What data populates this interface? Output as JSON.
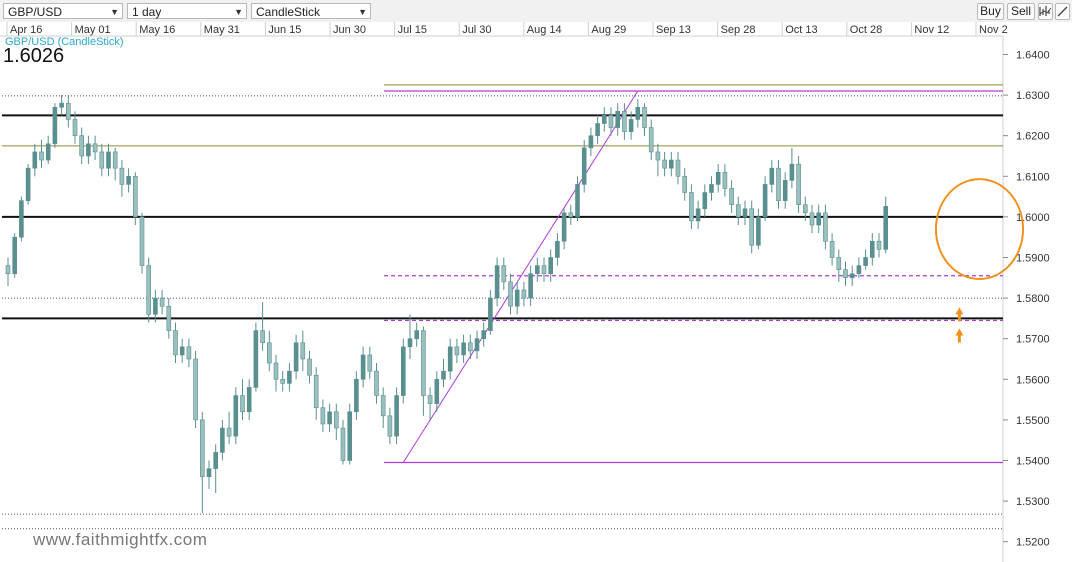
{
  "toolbar": {
    "symbol": "GBP/USD",
    "period": "1 day",
    "chart_type": "CandleStick",
    "buy_label": "Buy",
    "sell_label": "Sell",
    "indicator_icon": "indicator-icon",
    "draw_icon": "draw-icon"
  },
  "header": {
    "series_label": "GBP/USD (CandleStick)",
    "last_price": "1.6026"
  },
  "watermark": "www.faithmightfx.com",
  "colors": {
    "candle": "#5a8f8f",
    "candle_light": "#9abfbf",
    "trendline": "#b13ad9",
    "olive": "#8a8a3a",
    "circle": "#f0921e",
    "arrow": "#f0921e"
  },
  "chart_data": {
    "type": "candlestick",
    "title": "",
    "xlabel": "",
    "ylabel": "",
    "ylim": [
      1.515,
      1.648
    ],
    "y_ticks": [
      "1.6400",
      "1.6300",
      "1.6200",
      "1.6100",
      "1.6000",
      "1.5900",
      "1.5800",
      "1.5700",
      "1.5600",
      "1.5500",
      "1.5400",
      "1.5300",
      "1.5200"
    ],
    "x_ticks": [
      "Apr 16",
      "May 01",
      "May 16",
      "May 31",
      "Jun 15",
      "Jun 30",
      "Jul 15",
      "Jul 30",
      "Aug 14",
      "Aug 29",
      "Sep 13",
      "Sep 28",
      "Oct 13",
      "Oct 28",
      "Nov 12",
      "Nov 2"
    ],
    "support_resistance": [
      1.625,
      1.6,
      1.575
    ],
    "dotted_levels": [
      1.6298,
      1.58,
      1.5268,
      1.5232
    ],
    "olive_levels": [
      1.6325,
      1.6175
    ],
    "dashed_levels": [
      1.5855,
      1.5745
    ],
    "magenta_levels": [
      1.631,
      1.5395
    ],
    "trendline": [
      [
        59,
        1.5395
      ],
      [
        94,
        1.631
      ]
    ],
    "circle": {
      "x_index": 145,
      "center": 1.597,
      "radius_x": 6.5,
      "radius_price": 0.0123
    },
    "arrows": [
      {
        "x_index": 142,
        "price": 1.576
      },
      {
        "x_index": 142,
        "price": 1.5708
      }
    ],
    "candles": [
      [
        1.588,
        1.586,
        1.583,
        1.59
      ],
      [
        1.586,
        1.595,
        1.585,
        1.596
      ],
      [
        1.595,
        1.604,
        1.594,
        1.605
      ],
      [
        1.604,
        1.612,
        1.603,
        1.613
      ],
      [
        1.612,
        1.616,
        1.61,
        1.618
      ],
      [
        1.616,
        1.614,
        1.612,
        1.619
      ],
      [
        1.614,
        1.618,
        1.613,
        1.62
      ],
      [
        1.618,
        1.627,
        1.617,
        1.628
      ],
      [
        1.627,
        1.628,
        1.625,
        1.63
      ],
      [
        1.628,
        1.624,
        1.622,
        1.63
      ],
      [
        1.624,
        1.62,
        1.618,
        1.626
      ],
      [
        1.62,
        1.615,
        1.613,
        1.622
      ],
      [
        1.615,
        1.618,
        1.613,
        1.62
      ],
      [
        1.618,
        1.616,
        1.614,
        1.62
      ],
      [
        1.616,
        1.612,
        1.61,
        1.618
      ],
      [
        1.612,
        1.616,
        1.61,
        1.618
      ],
      [
        1.616,
        1.612,
        1.609,
        1.617
      ],
      [
        1.612,
        1.608,
        1.605,
        1.614
      ],
      [
        1.608,
        1.61,
        1.606,
        1.612
      ],
      [
        1.61,
        1.6,
        1.598,
        1.611
      ],
      [
        1.6,
        1.588,
        1.586,
        1.601
      ],
      [
        1.588,
        1.576,
        1.574,
        1.59
      ],
      [
        1.576,
        1.58,
        1.574,
        1.582
      ],
      [
        1.58,
        1.578,
        1.576,
        1.582
      ],
      [
        1.578,
        1.572,
        1.57,
        1.58
      ],
      [
        1.572,
        1.566,
        1.564,
        1.574
      ],
      [
        1.566,
        1.568,
        1.564,
        1.57
      ],
      [
        1.568,
        1.565,
        1.563,
        1.57
      ],
      [
        1.565,
        1.55,
        1.548,
        1.567
      ],
      [
        1.55,
        1.536,
        1.527,
        1.552
      ],
      [
        1.536,
        1.538,
        1.533,
        1.54
      ],
      [
        1.538,
        1.542,
        1.532,
        1.544
      ],
      [
        1.542,
        1.548,
        1.54,
        1.55
      ],
      [
        1.548,
        1.546,
        1.544,
        1.552
      ],
      [
        1.546,
        1.556,
        1.544,
        1.558
      ],
      [
        1.556,
        1.552,
        1.55,
        1.56
      ],
      [
        1.552,
        1.558,
        1.55,
        1.56
      ],
      [
        1.558,
        1.572,
        1.557,
        1.574
      ],
      [
        1.572,
        1.569,
        1.567,
        1.579
      ],
      [
        1.569,
        1.564,
        1.562,
        1.572
      ],
      [
        1.564,
        1.56,
        1.557,
        1.566
      ],
      [
        1.56,
        1.559,
        1.557,
        1.562
      ],
      [
        1.559,
        1.562,
        1.557,
        1.564
      ],
      [
        1.562,
        1.569,
        1.56,
        1.571
      ],
      [
        1.569,
        1.565,
        1.562,
        1.572
      ],
      [
        1.565,
        1.561,
        1.559,
        1.567
      ],
      [
        1.561,
        1.553,
        1.55,
        1.563
      ],
      [
        1.553,
        1.549,
        1.547,
        1.555
      ],
      [
        1.549,
        1.552,
        1.547,
        1.554
      ],
      [
        1.552,
        1.548,
        1.545,
        1.554
      ],
      [
        1.548,
        1.54,
        1.539,
        1.55
      ],
      [
        1.54,
        1.552,
        1.539,
        1.554
      ],
      [
        1.552,
        1.56,
        1.55,
        1.562
      ],
      [
        1.56,
        1.566,
        1.558,
        1.568
      ],
      [
        1.566,
        1.562,
        1.56,
        1.568
      ],
      [
        1.562,
        1.556,
        1.554,
        1.564
      ],
      [
        1.556,
        1.551,
        1.548,
        1.558
      ],
      [
        1.551,
        1.546,
        1.544,
        1.553
      ],
      [
        1.546,
        1.556,
        1.544,
        1.558
      ],
      [
        1.556,
        1.568,
        1.554,
        1.57
      ],
      [
        1.568,
        1.57,
        1.565,
        1.576
      ],
      [
        1.57,
        1.572,
        1.568,
        1.574
      ],
      [
        1.572,
        1.556,
        1.551,
        1.573
      ],
      [
        1.556,
        1.554,
        1.55,
        1.558
      ],
      [
        1.554,
        1.56,
        1.552,
        1.562
      ],
      [
        1.56,
        1.562,
        1.558,
        1.565
      ],
      [
        1.562,
        1.568,
        1.56,
        1.57
      ],
      [
        1.568,
        1.566,
        1.564,
        1.57
      ],
      [
        1.566,
        1.569,
        1.564,
        1.571
      ],
      [
        1.569,
        1.567,
        1.565,
        1.571
      ],
      [
        1.567,
        1.57,
        1.565,
        1.572
      ],
      [
        1.57,
        1.572,
        1.568,
        1.574
      ],
      [
        1.572,
        1.58,
        1.571,
        1.582
      ],
      [
        1.58,
        1.588,
        1.578,
        1.59
      ],
      [
        1.588,
        1.584,
        1.582,
        1.59
      ],
      [
        1.584,
        1.578,
        1.576,
        1.586
      ],
      [
        1.578,
        1.582,
        1.576,
        1.584
      ],
      [
        1.582,
        1.58,
        1.578,
        1.584
      ],
      [
        1.58,
        1.586,
        1.578,
        1.588
      ],
      [
        1.586,
        1.588,
        1.584,
        1.59
      ],
      [
        1.588,
        1.586,
        1.584,
        1.59
      ],
      [
        1.586,
        1.59,
        1.584,
        1.592
      ],
      [
        1.59,
        1.594,
        1.588,
        1.596
      ],
      [
        1.594,
        1.601,
        1.592,
        1.602
      ],
      [
        1.601,
        1.6,
        1.598,
        1.603
      ],
      [
        1.6,
        1.608,
        1.599,
        1.61
      ],
      [
        1.608,
        1.617,
        1.606,
        1.619
      ],
      [
        1.617,
        1.62,
        1.615,
        1.622
      ],
      [
        1.62,
        1.623,
        1.618,
        1.625
      ],
      [
        1.623,
        1.625,
        1.621,
        1.627
      ],
      [
        1.625,
        1.622,
        1.62,
        1.627
      ],
      [
        1.622,
        1.626,
        1.62,
        1.628
      ],
      [
        1.626,
        1.621,
        1.619,
        1.628
      ],
      [
        1.621,
        1.624,
        1.619,
        1.626
      ],
      [
        1.624,
        1.627,
        1.622,
        1.629
      ],
      [
        1.627,
        1.622,
        1.62,
        1.628
      ],
      [
        1.622,
        1.616,
        1.614,
        1.624
      ],
      [
        1.616,
        1.614,
        1.61,
        1.618
      ],
      [
        1.614,
        1.612,
        1.61,
        1.616
      ],
      [
        1.612,
        1.614,
        1.61,
        1.616
      ],
      [
        1.614,
        1.61,
        1.608,
        1.616
      ],
      [
        1.61,
        1.606,
        1.604,
        1.612
      ],
      [
        1.606,
        1.599,
        1.597,
        1.608
      ],
      [
        1.599,
        1.602,
        1.597,
        1.604
      ],
      [
        1.602,
        1.606,
        1.6,
        1.608
      ],
      [
        1.606,
        1.608,
        1.604,
        1.61
      ],
      [
        1.608,
        1.611,
        1.606,
        1.613
      ],
      [
        1.611,
        1.607,
        1.605,
        1.613
      ],
      [
        1.607,
        1.603,
        1.601,
        1.609
      ],
      [
        1.603,
        1.6,
        1.598,
        1.605
      ],
      [
        1.6,
        1.602,
        1.598,
        1.604
      ],
      [
        1.602,
        1.593,
        1.591,
        1.604
      ],
      [
        1.593,
        1.6,
        1.592,
        1.602
      ],
      [
        1.6,
        1.608,
        1.599,
        1.61
      ],
      [
        1.608,
        1.612,
        1.606,
        1.614
      ],
      [
        1.612,
        1.604,
        1.602,
        1.614
      ],
      [
        1.604,
        1.609,
        1.602,
        1.611
      ],
      [
        1.609,
        1.613,
        1.607,
        1.617
      ],
      [
        1.613,
        1.603,
        1.601,
        1.615
      ],
      [
        1.603,
        1.601,
        1.599,
        1.605
      ],
      [
        1.601,
        1.598,
        1.596,
        1.603
      ],
      [
        1.598,
        1.601,
        1.596,
        1.603
      ],
      [
        1.601,
        1.594,
        1.592,
        1.603
      ],
      [
        1.594,
        1.59,
        1.588,
        1.596
      ],
      [
        1.59,
        1.587,
        1.584,
        1.592
      ],
      [
        1.587,
        1.585,
        1.583,
        1.589
      ],
      [
        1.585,
        1.586,
        1.583,
        1.588
      ],
      [
        1.586,
        1.588,
        1.585,
        1.59
      ],
      [
        1.588,
        1.59,
        1.587,
        1.592
      ],
      [
        1.59,
        1.594,
        1.588,
        1.596
      ],
      [
        1.594,
        1.592,
        1.59,
        1.596
      ],
      [
        1.592,
        1.6026,
        1.591,
        1.605
      ]
    ]
  }
}
